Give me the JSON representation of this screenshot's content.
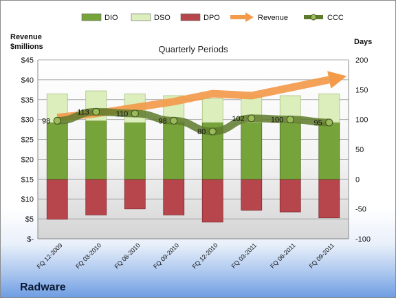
{
  "chart_data": {
    "type": "bar",
    "title": "Quarterly Periods",
    "company": "Radware",
    "y_left_label": [
      "Revenue",
      "$millions"
    ],
    "y_right_label": "Days",
    "y_left_ticks": [
      "$-",
      "$5",
      "$10",
      "$15",
      "$20",
      "$25",
      "$30",
      "$35",
      "$40",
      "$45"
    ],
    "y_right_ticks": [
      "-100",
      "-50",
      "0",
      "50",
      "100",
      "150",
      "200"
    ],
    "ylim_left": [
      0,
      45
    ],
    "ylim_right": [
      -100,
      200
    ],
    "grid": true,
    "legend_position": "top",
    "categories": [
      "FQ 12-2009",
      "FQ 03-2010",
      "FQ 06-2010",
      "FQ 09-2010",
      "FQ 12-2010",
      "FQ 03-2011",
      "FQ 06-2011",
      "FQ 09-2011"
    ],
    "series": [
      {
        "name": "DIO",
        "axis": "days",
        "kind": "stacked-bar",
        "color": "#77a33b",
        "values": [
          95,
          98,
          95,
          95,
          95,
          95,
          95,
          95
        ]
      },
      {
        "name": "DSO",
        "axis": "days",
        "kind": "stacked-bar",
        "color": "#dbeebc",
        "values": [
          48,
          50,
          48,
          45,
          40,
          45,
          45,
          48
        ]
      },
      {
        "name": "DPO",
        "axis": "days",
        "kind": "negative-bar",
        "color": "#b7464c",
        "values": [
          -67,
          -60,
          -50,
          -60,
          -72,
          -52,
          -55,
          -65
        ]
      },
      {
        "name": "Revenue",
        "axis": "revenue",
        "kind": "arrow-line",
        "color": "#f39a4b",
        "values": [
          30.5,
          31.5,
          33,
          34.5,
          36.5,
          36,
          38,
          40
        ]
      },
      {
        "name": "CCC",
        "axis": "days",
        "kind": "line",
        "color": "#5e7a2c",
        "values": [
          98,
          113,
          110,
          98,
          80,
          102,
          100,
          95
        ],
        "labels": [
          "98",
          "113",
          "110",
          "98",
          "80",
          "102",
          "100",
          "95"
        ]
      }
    ]
  }
}
